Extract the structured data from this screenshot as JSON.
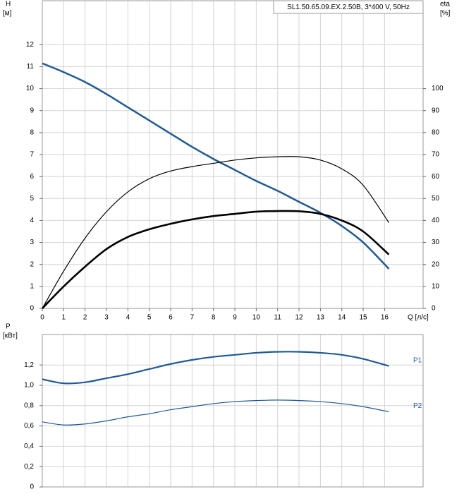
{
  "chart_data": [
    {
      "type": "line",
      "title": "SL1.50.65.09.EX.2.50B, 3*400 V, 50Hz",
      "y_label": "H",
      "y_unit": "[м]",
      "y2_label": "eta",
      "y2_unit": "[%]",
      "x_label": "Q [л/с]",
      "x": [
        0,
        1,
        2,
        3,
        4,
        5,
        6,
        7,
        8,
        9,
        10,
        11,
        12,
        13,
        14,
        15,
        16.2
      ],
      "xlim": [
        0,
        17.8
      ],
      "xticks": [
        0,
        1,
        2,
        3,
        4,
        5,
        6,
        7,
        8,
        9,
        10,
        11,
        12,
        13,
        14,
        15,
        16
      ],
      "ylim": [
        0,
        14
      ],
      "yticks": [
        0,
        1,
        2,
        3,
        4,
        5,
        6,
        7,
        8,
        9,
        10,
        11,
        12
      ],
      "y2lim": [
        0,
        140
      ],
      "y2ticks": [
        0,
        10,
        20,
        30,
        40,
        50,
        60,
        70,
        80,
        90,
        100
      ],
      "grid": true,
      "series": [
        {
          "color": "#1f5a96",
          "line_width": 2.5,
          "values": [
            11.15,
            10.75,
            10.3,
            9.75,
            9.15,
            8.55,
            7.95,
            7.35,
            6.8,
            6.3,
            5.8,
            5.35,
            4.85,
            4.35,
            3.75,
            3.0,
            1.8
          ]
        },
        {
          "color": "#000000",
          "line_width": 1.2,
          "axis": "y2",
          "values": [
            0,
            17,
            32,
            44,
            53,
            59,
            62.5,
            64.5,
            66,
            67.5,
            68.5,
            69,
            69,
            67.5,
            63.5,
            56,
            39
          ]
        },
        {
          "color": "#000000",
          "line_width": 2.6,
          "axis": "y2",
          "values": [
            0,
            10,
            19,
            27,
            32.5,
            36,
            38.5,
            40.5,
            42,
            43,
            44,
            44.3,
            44.2,
            43,
            40,
            35,
            24.5
          ]
        }
      ]
    },
    {
      "type": "line",
      "y_label": "P",
      "y_unit": "[кВт]",
      "x": [
        0,
        1,
        2,
        3,
        4,
        5,
        6,
        7,
        8,
        9,
        10,
        11,
        12,
        13,
        14,
        15,
        16.2
      ],
      "xlim": [
        0,
        17.8
      ],
      "ylim": [
        0,
        1.5
      ],
      "yticks": [
        0,
        {
          "value": 0.2,
          "label": "0,2"
        },
        {
          "value": 0.4,
          "label": "0,4"
        },
        {
          "value": 0.6,
          "label": "0,6"
        },
        {
          "value": 0.8,
          "label": "0,8"
        },
        {
          "value": 1.0,
          "label": "1,0"
        },
        {
          "value": 1.2,
          "label": "1,2"
        }
      ],
      "grid": true,
      "series": [
        {
          "name": "P1",
          "color": "#1f5a96",
          "line_width": 2.2,
          "values": [
            1.06,
            1.02,
            1.03,
            1.07,
            1.11,
            1.16,
            1.21,
            1.25,
            1.28,
            1.3,
            1.32,
            1.33,
            1.33,
            1.32,
            1.3,
            1.26,
            1.19
          ]
        },
        {
          "name": "P2",
          "color": "#1f5a96",
          "line_width": 1.2,
          "values": [
            0.64,
            0.61,
            0.62,
            0.65,
            0.69,
            0.72,
            0.76,
            0.79,
            0.82,
            0.84,
            0.85,
            0.855,
            0.85,
            0.84,
            0.82,
            0.79,
            0.74
          ]
        }
      ]
    }
  ]
}
